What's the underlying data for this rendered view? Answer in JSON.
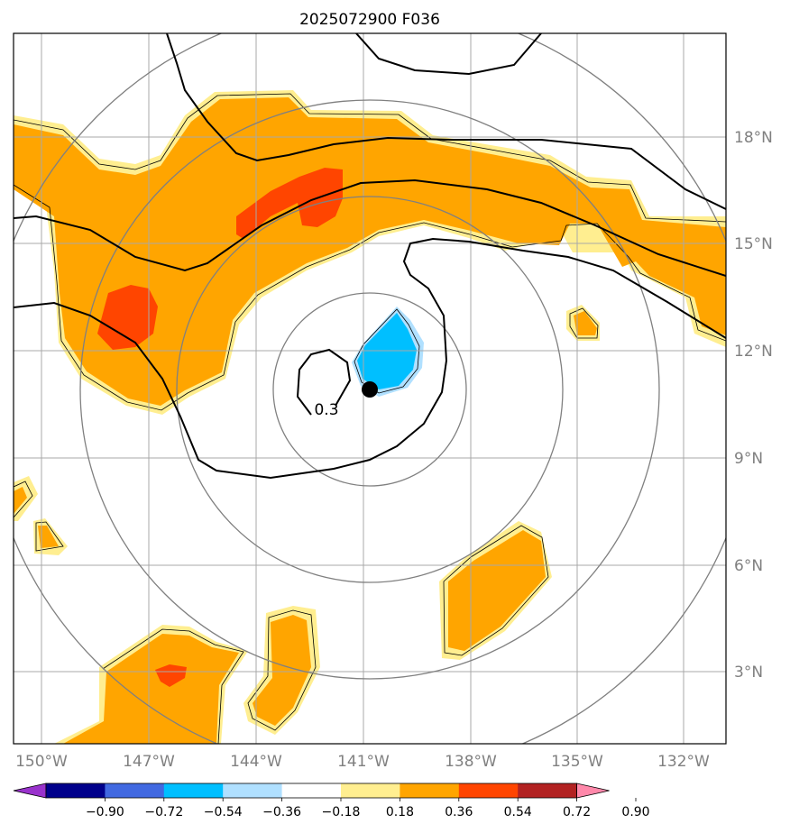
{
  "title": "2025072900 F036",
  "map": {
    "lon_labels": [
      "150°W",
      "147°W",
      "144°W",
      "141°W",
      "138°W",
      "135°W",
      "132°W"
    ],
    "lat_labels": [
      "18°N",
      "15°N",
      "12°N",
      "9°N",
      "6°N",
      "3°N"
    ],
    "contour_label": "0.3",
    "center_marker": "storm-center",
    "colors": {
      "orange": "#FFA500",
      "light_yellow": "#FFEE90",
      "red_orange": "#FF4500",
      "deep_sky_blue": "#00BFFF",
      "light_sky_blue": "#B0E0FF",
      "grid": "#A9A9A9",
      "range_rings": "#808080",
      "contour": "#000000"
    }
  },
  "colorbar": {
    "tick_labels": [
      "−0.90",
      "−0.72",
      "−0.54",
      "−0.36",
      "−0.18",
      "0.18",
      "0.36",
      "0.54",
      "0.72",
      "0.90"
    ],
    "colors": [
      "#9932CC",
      "#00008B",
      "#4169E1",
      "#00BFFF",
      "#B0E0FF",
      "#FFFFFF",
      "#FFEE90",
      "#FFA500",
      "#FF4500",
      "#B22222",
      "#FF88AA"
    ]
  }
}
